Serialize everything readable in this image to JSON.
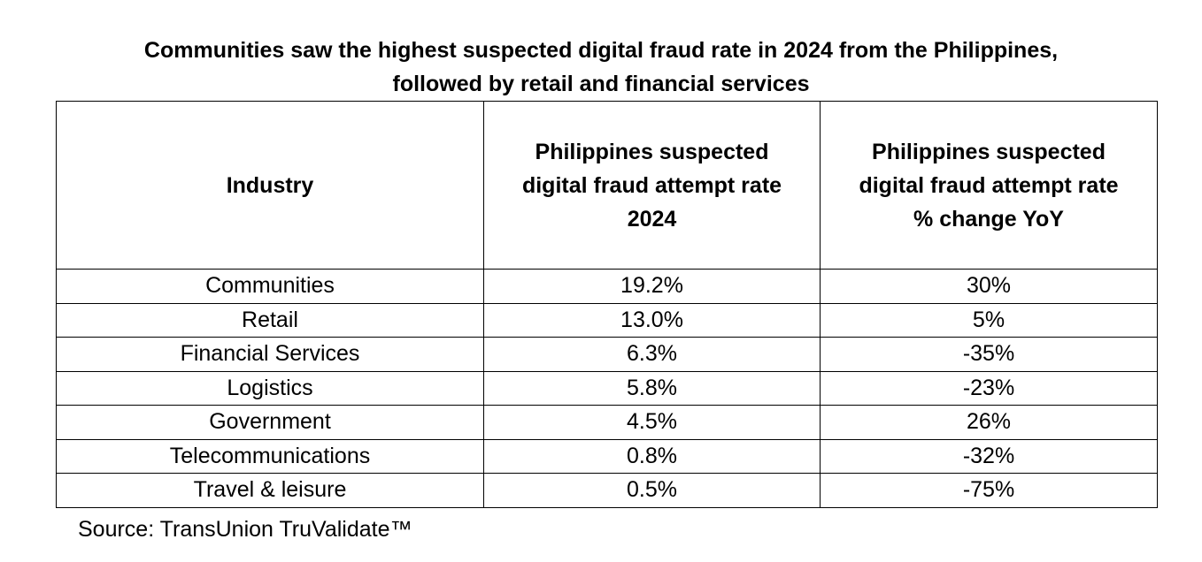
{
  "chart_data": {
    "type": "table",
    "title_lines": [
      "Communities saw the highest suspected digital fraud rate in 2024 from the Philippines,",
      "followed by retail and financial services"
    ],
    "columns": [
      {
        "label_lines": [
          "Industry"
        ]
      },
      {
        "label_lines": [
          "Philippines suspected",
          "digital fraud attempt rate",
          "2024"
        ]
      },
      {
        "label_lines": [
          "Philippines suspected",
          "digital fraud attempt rate",
          "% change YoY"
        ]
      }
    ],
    "rows": [
      {
        "industry": "Communities",
        "rate_2024": "19.2%",
        "yoy_change": "30%"
      },
      {
        "industry": "Retail",
        "rate_2024": "13.0%",
        "yoy_change": "5%"
      },
      {
        "industry": "Financial Services",
        "rate_2024": "6.3%",
        "yoy_change": "-35%"
      },
      {
        "industry": "Logistics",
        "rate_2024": "5.8%",
        "yoy_change": "-23%"
      },
      {
        "industry": "Government",
        "rate_2024": "4.5%",
        "yoy_change": "26%"
      },
      {
        "industry": "Telecommunications",
        "rate_2024": "0.8%",
        "yoy_change": "-32%"
      },
      {
        "industry": "Travel & leisure",
        "rate_2024": "0.5%",
        "yoy_change": "-75%"
      }
    ],
    "source": "Source: TransUnion TruValidate™"
  }
}
